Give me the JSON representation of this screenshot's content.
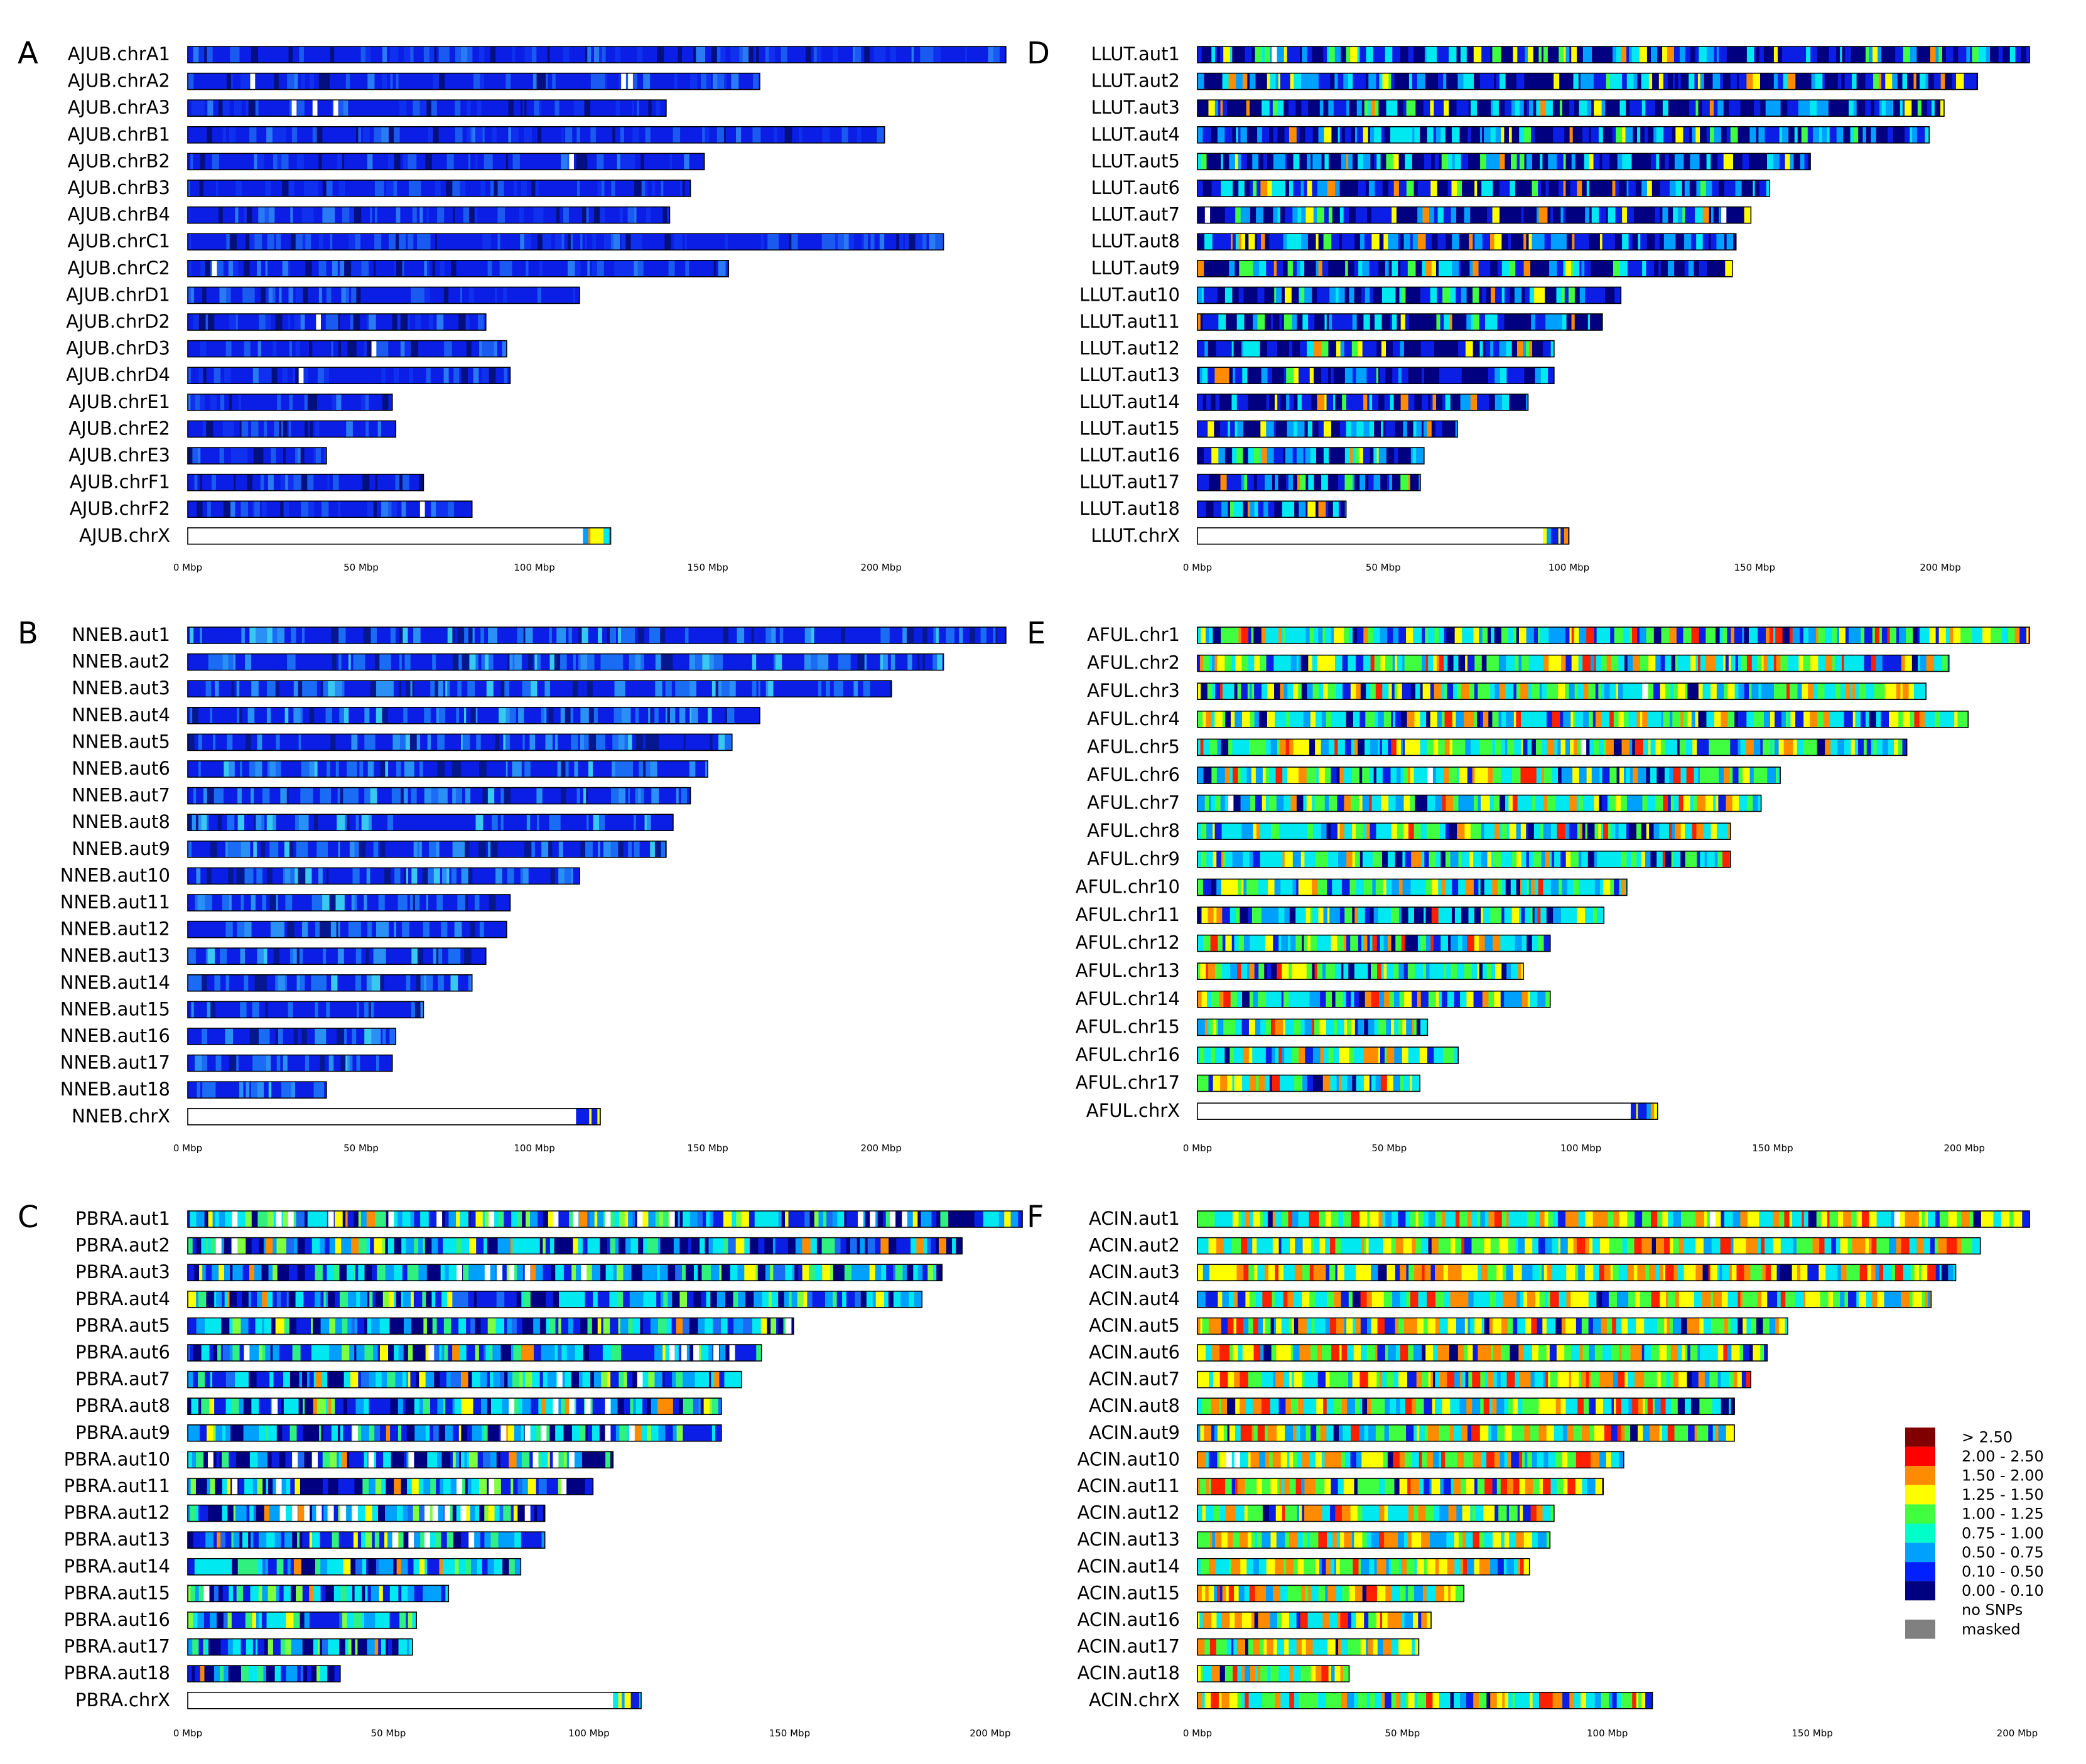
{
  "chart_data": [
    {
      "type": "heatmap",
      "title": "",
      "panel": "A",
      "xlabel": "",
      "xlim": [
        0,
        240
      ],
      "x_ticks": [
        0,
        50,
        100,
        150,
        200
      ],
      "x_tick_labels": [
        "0 Mbp",
        "50 Mbp",
        "100 Mbp",
        "150 Mbp",
        "200 Mbp"
      ],
      "palette": "blue",
      "chromosomes": [
        {
          "name": "AJUB.chrA1",
          "length": 236,
          "gaps": []
        },
        {
          "name": "AJUB.chrA2",
          "length": 165,
          "gaps": [
            18,
            125,
            127
          ]
        },
        {
          "name": "AJUB.chrA3",
          "length": 138,
          "gaps": [
            30,
            36,
            42
          ]
        },
        {
          "name": "AJUB.chrB1",
          "length": 201,
          "gaps": []
        },
        {
          "name": "AJUB.chrB2",
          "length": 149,
          "gaps": [
            110
          ]
        },
        {
          "name": "AJUB.chrB3",
          "length": 145,
          "gaps": []
        },
        {
          "name": "AJUB.chrB4",
          "length": 139,
          "gaps": []
        },
        {
          "name": "AJUB.chrC1",
          "length": 218,
          "gaps": []
        },
        {
          "name": "AJUB.chrC2",
          "length": 156,
          "gaps": [
            7
          ]
        },
        {
          "name": "AJUB.chrD1",
          "length": 113,
          "gaps": []
        },
        {
          "name": "AJUB.chrD2",
          "length": 86,
          "gaps": [
            37
          ]
        },
        {
          "name": "AJUB.chrD3",
          "length": 92,
          "gaps": [
            53
          ]
        },
        {
          "name": "AJUB.chrD4",
          "length": 93,
          "gaps": [
            32
          ]
        },
        {
          "name": "AJUB.chrE1",
          "length": 59,
          "gaps": []
        },
        {
          "name": "AJUB.chrE2",
          "length": 60,
          "gaps": []
        },
        {
          "name": "AJUB.chrE3",
          "length": 40,
          "gaps": []
        },
        {
          "name": "AJUB.chrF1",
          "length": 68,
          "gaps": []
        },
        {
          "name": "AJUB.chrF2",
          "length": 82,
          "gaps": [
            67
          ]
        },
        {
          "name": "AJUB.chrX",
          "length": 122,
          "no_snp_until": 114
        }
      ]
    },
    {
      "type": "heatmap",
      "title": "",
      "panel": "B",
      "xlabel": "",
      "xlim": [
        0,
        240
      ],
      "x_ticks": [
        0,
        50,
        100,
        150,
        200
      ],
      "x_tick_labels": [
        "0 Mbp",
        "50 Mbp",
        "100 Mbp",
        "150 Mbp",
        "200 Mbp"
      ],
      "palette": "blue2",
      "chromosomes": [
        {
          "name": "NNEB.aut1",
          "length": 236,
          "gaps": []
        },
        {
          "name": "NNEB.aut2",
          "length": 218,
          "gaps": []
        },
        {
          "name": "NNEB.aut3",
          "length": 203,
          "gaps": []
        },
        {
          "name": "NNEB.aut4",
          "length": 165,
          "gaps": []
        },
        {
          "name": "NNEB.aut5",
          "length": 157,
          "gaps": []
        },
        {
          "name": "NNEB.aut6",
          "length": 150,
          "gaps": []
        },
        {
          "name": "NNEB.aut7",
          "length": 145,
          "gaps": []
        },
        {
          "name": "NNEB.aut8",
          "length": 140,
          "gaps": []
        },
        {
          "name": "NNEB.aut9",
          "length": 138,
          "gaps": []
        },
        {
          "name": "NNEB.aut10",
          "length": 113,
          "gaps": []
        },
        {
          "name": "NNEB.aut11",
          "length": 93,
          "gaps": []
        },
        {
          "name": "NNEB.aut12",
          "length": 92,
          "gaps": []
        },
        {
          "name": "NNEB.aut13",
          "length": 86,
          "gaps": []
        },
        {
          "name": "NNEB.aut14",
          "length": 82,
          "gaps": []
        },
        {
          "name": "NNEB.aut15",
          "length": 68,
          "gaps": []
        },
        {
          "name": "NNEB.aut16",
          "length": 60,
          "gaps": []
        },
        {
          "name": "NNEB.aut17",
          "length": 59,
          "gaps": []
        },
        {
          "name": "NNEB.aut18",
          "length": 40,
          "gaps": []
        },
        {
          "name": "NNEB.chrX",
          "length": 119,
          "no_snp_until": 112
        }
      ]
    },
    {
      "type": "heatmap",
      "title": "",
      "panel": "C",
      "xlabel": "",
      "xlim": [
        0,
        208
      ],
      "x_ticks": [
        0,
        50,
        100,
        150,
        200
      ],
      "x_tick_labels": [
        "0 Mbp",
        "50 Mbp",
        "100 Mbp",
        "150 Mbp",
        "200 Mbp"
      ],
      "palette": "mixed",
      "chromosomes": [
        {
          "name": "PBRA.aut1",
          "length": 208,
          "gaps": [
            11,
            22,
            25,
            35,
            50,
            62,
            75,
            91,
            96,
            104,
            112,
            120,
            167,
            170,
            175,
            178
          ]
        },
        {
          "name": "PBRA.aut2",
          "length": 193,
          "gaps": [
            7,
            11
          ]
        },
        {
          "name": "PBRA.aut3",
          "length": 188,
          "gaps": [
            67,
            74,
            77,
            80,
            84,
            98
          ]
        },
        {
          "name": "PBRA.aut4",
          "length": 183,
          "gaps": []
        },
        {
          "name": "PBRA.aut5",
          "length": 151,
          "gaps": [
            149
          ]
        },
        {
          "name": "PBRA.aut6",
          "length": 143,
          "gaps": [
            14,
            60,
            120,
            123,
            126,
            131,
            135
          ]
        },
        {
          "name": "PBRA.aut7",
          "length": 138,
          "gaps": [
            92,
            112
          ]
        },
        {
          "name": "PBRA.aut8",
          "length": 133,
          "gaps": [
            21,
            80,
            91,
            95,
            99,
            104
          ]
        },
        {
          "name": "PBRA.aut9",
          "length": 133,
          "gaps": [
            41,
            78,
            84,
            88,
            104,
            110
          ]
        },
        {
          "name": "PBRA.aut10",
          "length": 106,
          "gaps": [
            5,
            26,
            31,
            45,
            55,
            86,
            91,
            95
          ]
        },
        {
          "name": "PBRA.aut11",
          "length": 101,
          "gaps": [
            11,
            22,
            67,
            75,
            93
          ]
        },
        {
          "name": "PBRA.aut12",
          "length": 89,
          "gaps": [
            23,
            26,
            29,
            32,
            35,
            38,
            41,
            59,
            61,
            64,
            68,
            84
          ]
        },
        {
          "name": "PBRA.aut13",
          "length": 89,
          "gaps": [
            51,
            55,
            59,
            70
          ]
        },
        {
          "name": "PBRA.aut14",
          "length": 83,
          "gaps": []
        },
        {
          "name": "PBRA.aut15",
          "length": 65,
          "gaps": [
            4
          ]
        },
        {
          "name": "PBRA.aut16",
          "length": 57,
          "gaps": []
        },
        {
          "name": "PBRA.aut17",
          "length": 56,
          "gaps": []
        },
        {
          "name": "PBRA.aut18",
          "length": 38,
          "gaps": []
        },
        {
          "name": "PBRA.chrX",
          "length": 113,
          "no_snp_until": 106
        }
      ]
    },
    {
      "type": "heatmap",
      "title": "",
      "panel": "D",
      "xlabel": "",
      "xlim": [
        0,
        224
      ],
      "x_ticks": [
        0,
        50,
        100,
        150,
        200
      ],
      "x_tick_labels": [
        "0 Mbp",
        "50 Mbp",
        "100 Mbp",
        "150 Mbp",
        "200 Mbp"
      ],
      "palette": "dark",
      "chromosomes": [
        {
          "name": "LLUT.aut1",
          "length": 224,
          "gaps": [
            20
          ]
        },
        {
          "name": "LLUT.aut2",
          "length": 210,
          "gaps": []
        },
        {
          "name": "LLUT.aut3",
          "length": 201,
          "gaps": []
        },
        {
          "name": "LLUT.aut4",
          "length": 197,
          "gaps": []
        },
        {
          "name": "LLUT.aut5",
          "length": 165,
          "gaps": []
        },
        {
          "name": "LLUT.aut6",
          "length": 154,
          "gaps": []
        },
        {
          "name": "LLUT.aut7",
          "length": 149,
          "gaps": [
            2,
            141
          ]
        },
        {
          "name": "LLUT.aut8",
          "length": 145,
          "gaps": []
        },
        {
          "name": "LLUT.aut9",
          "length": 144,
          "gaps": []
        },
        {
          "name": "LLUT.aut10",
          "length": 114,
          "gaps": []
        },
        {
          "name": "LLUT.aut11",
          "length": 109,
          "gaps": []
        },
        {
          "name": "LLUT.aut12",
          "length": 96,
          "gaps": []
        },
        {
          "name": "LLUT.aut13",
          "length": 96,
          "gaps": []
        },
        {
          "name": "LLUT.aut14",
          "length": 89,
          "gaps": []
        },
        {
          "name": "LLUT.aut15",
          "length": 70,
          "gaps": []
        },
        {
          "name": "LLUT.aut16",
          "length": 61,
          "gaps": []
        },
        {
          "name": "LLUT.aut17",
          "length": 60,
          "gaps": []
        },
        {
          "name": "LLUT.aut18",
          "length": 40,
          "gaps": []
        },
        {
          "name": "LLUT.chrX",
          "length": 100,
          "no_snp_until": 93
        }
      ]
    },
    {
      "type": "heatmap",
      "title": "",
      "panel": "E",
      "xlabel": "",
      "xlim": [
        0,
        217
      ],
      "x_ticks": [
        0,
        50,
        100,
        150,
        200
      ],
      "x_tick_labels": [
        "0 Mbp",
        "50 Mbp",
        "100 Mbp",
        "150 Mbp",
        "200 Mbp"
      ],
      "palette": "rainbow",
      "chromosomes": [
        {
          "name": "AFUL.chr1",
          "length": 217,
          "gaps": []
        },
        {
          "name": "AFUL.chr2",
          "length": 196,
          "gaps": []
        },
        {
          "name": "AFUL.chr3",
          "length": 190,
          "gaps": [
            116
          ]
        },
        {
          "name": "AFUL.chr4",
          "length": 201,
          "gaps": []
        },
        {
          "name": "AFUL.chr5",
          "length": 185,
          "gaps": [
            100
          ]
        },
        {
          "name": "AFUL.chr6",
          "length": 152,
          "gaps": [
            60
          ]
        },
        {
          "name": "AFUL.chr7",
          "length": 147,
          "gaps": [
            8
          ]
        },
        {
          "name": "AFUL.chr8",
          "length": 139,
          "gaps": []
        },
        {
          "name": "AFUL.chr9",
          "length": 139,
          "gaps": []
        },
        {
          "name": "AFUL.chr10",
          "length": 112,
          "gaps": []
        },
        {
          "name": "AFUL.chr11",
          "length": 106,
          "gaps": []
        },
        {
          "name": "AFUL.chr12",
          "length": 92,
          "gaps": []
        },
        {
          "name": "AFUL.chr13",
          "length": 85,
          "gaps": []
        },
        {
          "name": "AFUL.chr14",
          "length": 92,
          "gaps": []
        },
        {
          "name": "AFUL.chr15",
          "length": 60,
          "gaps": []
        },
        {
          "name": "AFUL.chr16",
          "length": 68,
          "gaps": []
        },
        {
          "name": "AFUL.chr17",
          "length": 58,
          "gaps": []
        },
        {
          "name": "AFUL.chrX",
          "length": 120,
          "no_snp_until": 113
        }
      ]
    },
    {
      "type": "heatmap",
      "title": "",
      "panel": "F",
      "xlabel": "",
      "xlim": [
        0,
        203
      ],
      "x_ticks": [
        0,
        50,
        100,
        150,
        200
      ],
      "x_tick_labels": [
        "0 Mbp",
        "50 Mbp",
        "100 Mbp",
        "150 Mbp",
        "200 Mbp"
      ],
      "palette": "warm",
      "chromosomes": [
        {
          "name": "ACIN.aut1",
          "length": 203,
          "gaps": [
            125,
            170
          ]
        },
        {
          "name": "ACIN.aut2",
          "length": 191,
          "gaps": []
        },
        {
          "name": "ACIN.aut3",
          "length": 185,
          "gaps": []
        },
        {
          "name": "ACIN.aut4",
          "length": 179,
          "gaps": []
        },
        {
          "name": "ACIN.aut5",
          "length": 144,
          "gaps": []
        },
        {
          "name": "ACIN.aut6",
          "length": 139,
          "gaps": []
        },
        {
          "name": "ACIN.aut7",
          "length": 135,
          "gaps": []
        },
        {
          "name": "ACIN.aut8",
          "length": 131,
          "gaps": []
        },
        {
          "name": "ACIN.aut9",
          "length": 131,
          "gaps": []
        },
        {
          "name": "ACIN.aut10",
          "length": 104,
          "gaps": [
            7,
            9
          ]
        },
        {
          "name": "ACIN.aut11",
          "length": 99,
          "gaps": []
        },
        {
          "name": "ACIN.aut12",
          "length": 87,
          "gaps": []
        },
        {
          "name": "ACIN.aut13",
          "length": 86,
          "gaps": []
        },
        {
          "name": "ACIN.aut14",
          "length": 81,
          "gaps": []
        },
        {
          "name": "ACIN.aut15",
          "length": 65,
          "gaps": []
        },
        {
          "name": "ACIN.aut16",
          "length": 57,
          "gaps": []
        },
        {
          "name": "ACIN.aut17",
          "length": 54,
          "gaps": []
        },
        {
          "name": "ACIN.aut18",
          "length": 37,
          "gaps": []
        },
        {
          "name": "ACIN.chrX",
          "length": 111,
          "gaps": []
        }
      ]
    }
  ],
  "legend": {
    "entries": [
      {
        "label": "> 2.50",
        "color": "#800000"
      },
      {
        "label": "2.00 - 2.50",
        "color": "#ff0000"
      },
      {
        "label": "1.50 - 2.00",
        "color": "#ff8c00"
      },
      {
        "label": "1.25 - 1.50",
        "color": "#ffff00"
      },
      {
        "label": "1.00 - 1.25",
        "color": "#40ff40"
      },
      {
        "label": "0.75 - 1.00",
        "color": "#00ffc8"
      },
      {
        "label": "0.50 - 0.75",
        "color": "#00a0ff"
      },
      {
        "label": "0.10 - 0.50",
        "color": "#0020ff"
      },
      {
        "label": "0.00 - 0.10",
        "color": "#000080"
      },
      {
        "label": "no SNPs",
        "color": "#ffffff"
      },
      {
        "label": "masked",
        "color": "#808080"
      }
    ]
  },
  "palettes": {
    "blue": [
      [
        "#0a1ee6",
        0.6
      ],
      [
        "#1030f0",
        0.15
      ],
      [
        "#1a5af0",
        0.12
      ],
      [
        "#051080",
        0.08
      ],
      [
        "#2a7af5",
        0.05
      ]
    ],
    "blue2": [
      [
        "#0a1ee6",
        0.55
      ],
      [
        "#1a6cf5",
        0.2
      ],
      [
        "#2a90f5",
        0.12
      ],
      [
        "#061890",
        0.08
      ],
      [
        "#38c8f0",
        0.05
      ]
    ],
    "mixed": [
      [
        "#0a1ee6",
        0.2
      ],
      [
        "#00a0ff",
        0.17
      ],
      [
        "#00e8f0",
        0.17
      ],
      [
        "#000080",
        0.2
      ],
      [
        "#30f080",
        0.1
      ],
      [
        "#80ff40",
        0.06
      ],
      [
        "#ffff00",
        0.04
      ],
      [
        "#ff8c00",
        0.03
      ],
      [
        "#1a6cf5",
        0.03
      ]
    ],
    "dark": [
      [
        "#000080",
        0.35
      ],
      [
        "#0a1ee6",
        0.25
      ],
      [
        "#00a0ff",
        0.15
      ],
      [
        "#00e8f0",
        0.12
      ],
      [
        "#40ff40",
        0.05
      ],
      [
        "#ffff00",
        0.04
      ],
      [
        "#ff8c00",
        0.04
      ]
    ],
    "rainbow": [
      [
        "#00e8f0",
        0.26
      ],
      [
        "#40ff40",
        0.2
      ],
      [
        "#ffff00",
        0.14
      ],
      [
        "#ff8c00",
        0.08
      ],
      [
        "#00a0ff",
        0.12
      ],
      [
        "#0a1ee6",
        0.1
      ],
      [
        "#000080",
        0.06
      ],
      [
        "#ff2000",
        0.04
      ]
    ],
    "warm": [
      [
        "#40ff40",
        0.2
      ],
      [
        "#00e8f0",
        0.2
      ],
      [
        "#ffff00",
        0.18
      ],
      [
        "#ff8c00",
        0.18
      ],
      [
        "#ff2000",
        0.07
      ],
      [
        "#00a0ff",
        0.08
      ],
      [
        "#0a1ee6",
        0.06
      ],
      [
        "#000080",
        0.03
      ]
    ]
  }
}
